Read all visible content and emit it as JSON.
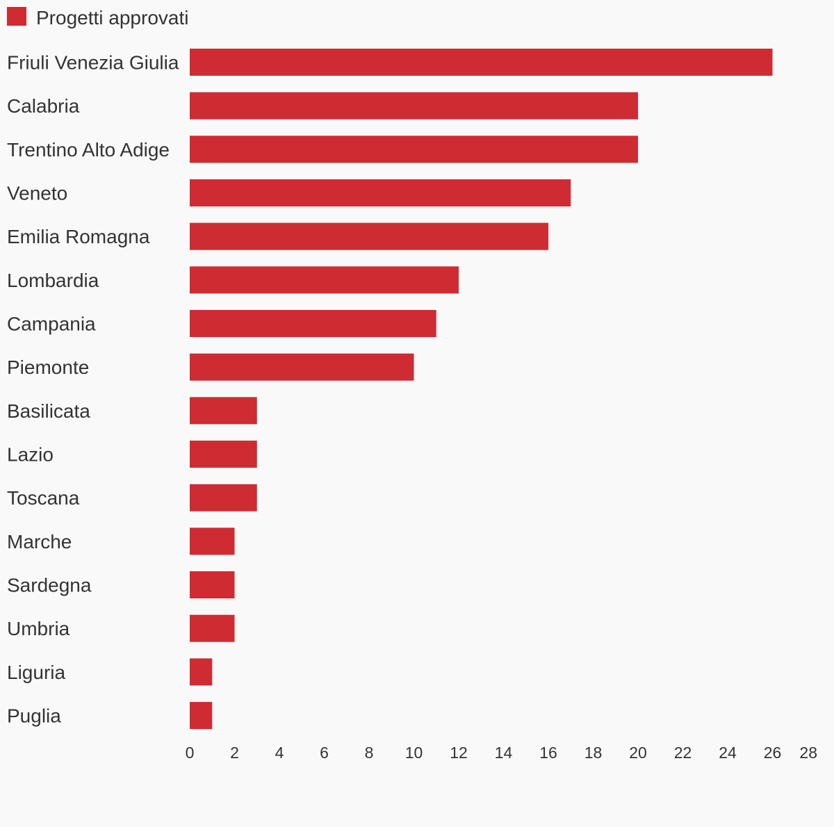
{
  "colors": {
    "background": "#f9f9f9",
    "bar": "#cf2b33",
    "text": "#333333"
  },
  "legend": {
    "label": "Progetti approvati"
  },
  "chart_data": {
    "type": "bar",
    "orientation": "horizontal",
    "categories": [
      "Friuli Venezia Giulia",
      "Calabria",
      "Trentino Alto Adige",
      "Veneto",
      "Emilia Romagna",
      "Lombardia",
      "Campania",
      "Piemonte",
      "Basilicata",
      "Lazio",
      "Toscana",
      "Marche",
      "Sardegna",
      "Umbria",
      "Liguria",
      "Puglia"
    ],
    "series": [
      {
        "name": "Progetti approvati",
        "values": [
          26,
          20,
          20,
          17,
          16,
          12,
          11,
          10,
          3,
          3,
          3,
          2,
          2,
          2,
          1,
          1
        ]
      }
    ],
    "xlim": [
      0,
      28
    ],
    "xticks": [
      "0",
      "2",
      "4",
      "6",
      "8",
      "10",
      "12",
      "14",
      "16",
      "18",
      "20",
      "22",
      "24",
      "26",
      "28"
    ],
    "grid": false,
    "legend_position": "top-left"
  }
}
